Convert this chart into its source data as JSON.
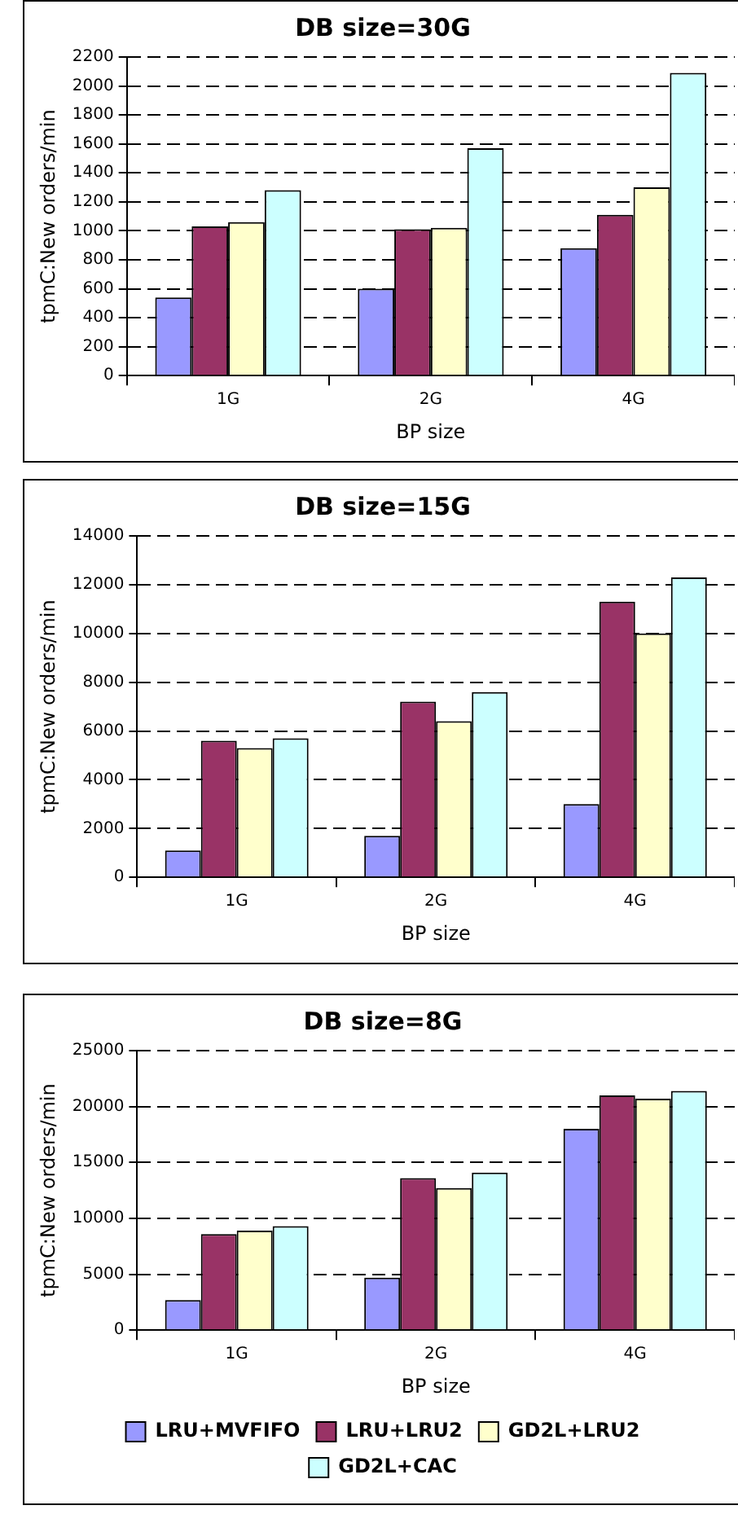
{
  "chart_data": [
    {
      "type": "bar",
      "title": "DB size=30G",
      "xlabel": "BP size",
      "ylabel": "tpmC:New orders/min",
      "categories": [
        "1G",
        "2G",
        "4G"
      ],
      "series": [
        {
          "color": "#9999ff",
          "values": [
            540,
            600,
            880
          ]
        },
        {
          "color": "#993366",
          "values": [
            1030,
            1010,
            1110
          ]
        },
        {
          "color": "#ffffcc",
          "values": [
            1060,
            1020,
            1300
          ]
        },
        {
          "color": "#ccffff",
          "values": [
            1280,
            1570,
            2090
          ]
        }
      ],
      "ylim": [
        0,
        2200
      ],
      "yticks": [
        0,
        200,
        400,
        600,
        800,
        1000,
        1200,
        1400,
        1600,
        1800,
        2000,
        2200
      ],
      "grid": "y",
      "legend": false
    },
    {
      "type": "bar",
      "title": "DB size=15G",
      "xlabel": "BP size",
      "ylabel": "tpmC:New orders/min",
      "categories": [
        "1G",
        "2G",
        "4G"
      ],
      "series": [
        {
          "color": "#9999ff",
          "values": [
            1100,
            1700,
            3000
          ]
        },
        {
          "color": "#993366",
          "values": [
            5600,
            7200,
            11300
          ]
        },
        {
          "color": "#ffffcc",
          "values": [
            5300,
            6400,
            10000
          ]
        },
        {
          "color": "#ccffff",
          "values": [
            5700,
            7600,
            12300
          ]
        }
      ],
      "ylim": [
        0,
        14000
      ],
      "yticks": [
        0,
        2000,
        4000,
        6000,
        8000,
        10000,
        12000,
        14000
      ],
      "grid": "y",
      "legend": false
    },
    {
      "type": "bar",
      "title": "DB size=8G",
      "xlabel": "BP size",
      "ylabel": "tpmC:New orders/min",
      "categories": [
        "1G",
        "2G",
        "4G"
      ],
      "series": [
        {
          "name": "LRU+MVFIFO",
          "color": "#9999ff",
          "values": [
            2700,
            4700,
            18000
          ]
        },
        {
          "name": "LRU+LRU2",
          "color": "#993366",
          "values": [
            8600,
            13600,
            21000
          ]
        },
        {
          "name": "GD2L+LRU2",
          "color": "#ffffcc",
          "values": [
            8900,
            12700,
            20700
          ]
        },
        {
          "name": "GD2L+CAC",
          "color": "#ccffff",
          "values": [
            9300,
            14100,
            21400
          ]
        }
      ],
      "ylim": [
        0,
        25000
      ],
      "yticks": [
        0,
        5000,
        10000,
        15000,
        20000,
        25000
      ],
      "grid": "y",
      "legend": "bottom"
    }
  ]
}
